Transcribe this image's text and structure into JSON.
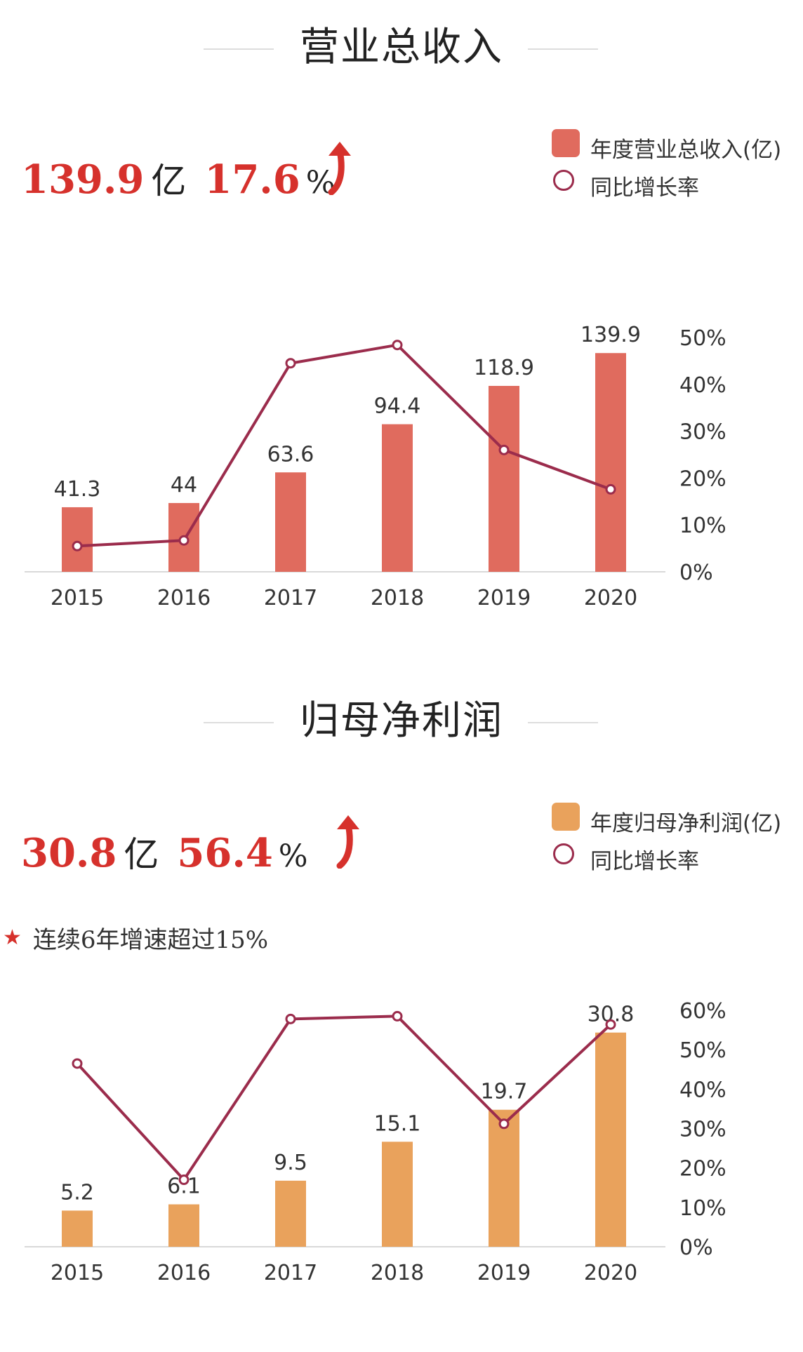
{
  "colors": {
    "revenue_bar": "#e06b5e",
    "profit_bar": "#e9a25c",
    "growth_line": "#9b2c4c",
    "headline_red": "#d6312c"
  },
  "revenue": {
    "title": "营业总收入",
    "headline": {
      "value": "139.9",
      "unit": "亿",
      "growth": "17.6",
      "growth_unit": "%",
      "trend_icon": "up-arrow-icon"
    },
    "legend": {
      "bar_label": "年度营业总收入(亿)",
      "line_label": "同比增长率"
    }
  },
  "profit": {
    "title": "归母净利润",
    "headline": {
      "value": "30.8",
      "unit": "亿",
      "growth": "56.4",
      "growth_unit": "%",
      "trend_icon": "up-arrow-icon"
    },
    "legend": {
      "bar_label": "年度归母净利润(亿)",
      "line_label": "同比增长率"
    },
    "note": {
      "icon": "star-icon",
      "text": "连续6年增速超过15%"
    }
  },
  "chart_data": [
    {
      "type": "bar",
      "categories": [
        "2015",
        "2016",
        "2017",
        "2018",
        "2019",
        "2020"
      ],
      "series": [
        {
          "name": "年度营业总收入(亿)",
          "type": "bar",
          "values": [
            41.3,
            44,
            63.6,
            94.4,
            118.9,
            139.9
          ],
          "labels": [
            "41.3",
            "44",
            "63.6",
            "94.4",
            "118.9",
            "139.9"
          ]
        },
        {
          "name": "同比增长率",
          "type": "line",
          "axis": "right",
          "values": [
            5.5,
            6.7,
            44.5,
            48.4,
            26.0,
            17.6
          ]
        }
      ],
      "y_right": {
        "ticks": [
          "0%",
          "10%",
          "20%",
          "30%",
          "40%",
          "50%"
        ],
        "range": [
          0,
          50
        ]
      },
      "bar_scale_max": 140,
      "grid": false,
      "legend_position": "top-right"
    },
    {
      "type": "bar",
      "categories": [
        "2015",
        "2016",
        "2017",
        "2018",
        "2019",
        "2020"
      ],
      "series": [
        {
          "name": "年度归母净利润(亿)",
          "type": "bar",
          "values": [
            5.2,
            6.1,
            9.5,
            15.1,
            19.7,
            30.8
          ],
          "labels": [
            "5.2",
            "6.1",
            "9.5",
            "15.1",
            "19.7",
            "30.8"
          ]
        },
        {
          "name": "同比增长率",
          "type": "line",
          "axis": "right",
          "values": [
            46.5,
            17.0,
            57.8,
            58.5,
            31.2,
            56.4
          ]
        }
      ],
      "y_right": {
        "ticks": [
          "0%",
          "10%",
          "20%",
          "30%",
          "40%",
          "50%",
          "60%"
        ],
        "range": [
          0,
          60
        ]
      },
      "bar_scale_max": 34,
      "grid": false,
      "legend_position": "top-right"
    }
  ]
}
